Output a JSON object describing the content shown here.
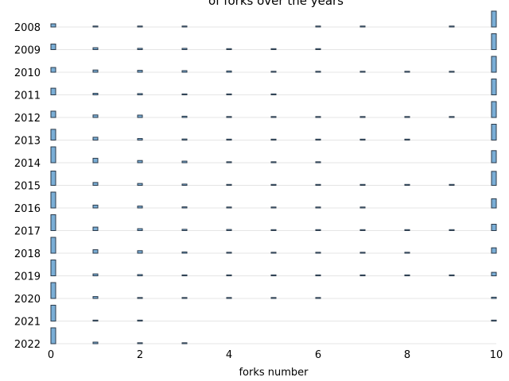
{
  "chart_data": {
    "type": "bar",
    "title": "of forks over the years",
    "xlabel": "forks number",
    "ylabel": "",
    "xlim": [
      0,
      10
    ],
    "x_ticks": [
      "0",
      "2",
      "4",
      "6",
      "8",
      "10"
    ],
    "x": [
      0,
      1,
      2,
      3,
      4,
      5,
      6,
      7,
      8,
      9,
      10
    ],
    "series_fill": "#7aaed6",
    "series_stroke": "#2b3a4a",
    "grid": "horizontal",
    "years": [
      {
        "name": "2008",
        "values": [
          0.2,
          0.02,
          0.05,
          0.02,
          0,
          0,
          0.02,
          0.03,
          0,
          0.03,
          1.0
        ]
      },
      {
        "name": "2009",
        "values": [
          0.35,
          0.12,
          0.08,
          0.08,
          0.02,
          0.02,
          0.02,
          0,
          0,
          0,
          1.0
        ]
      },
      {
        "name": "2010",
        "values": [
          0.3,
          0.14,
          0.12,
          0.1,
          0.08,
          0.03,
          0.02,
          0.02,
          0.02,
          0.03,
          1.0
        ]
      },
      {
        "name": "2011",
        "values": [
          0.42,
          0.1,
          0.08,
          0.06,
          0.03,
          0.02,
          0,
          0,
          0,
          0,
          1.0
        ]
      },
      {
        "name": "2012",
        "values": [
          0.4,
          0.16,
          0.15,
          0.08,
          0.06,
          0.06,
          0.05,
          0.02,
          0.02,
          0.02,
          1.0
        ]
      },
      {
        "name": "2013",
        "values": [
          0.68,
          0.18,
          0.1,
          0.07,
          0.04,
          0.02,
          0.02,
          0.02,
          0.02,
          0,
          1.0
        ]
      },
      {
        "name": "2014",
        "values": [
          1.0,
          0.28,
          0.14,
          0.1,
          0.03,
          0.03,
          0.02,
          0,
          0,
          0,
          0.76
        ]
      },
      {
        "name": "2015",
        "values": [
          0.9,
          0.18,
          0.12,
          0.08,
          0.06,
          0.06,
          0.02,
          0.02,
          0.02,
          0.02,
          0.88
        ]
      },
      {
        "name": "2016",
        "values": [
          1.0,
          0.18,
          0.12,
          0.07,
          0.03,
          0.02,
          0.02,
          0.02,
          0,
          0,
          0.58
        ]
      },
      {
        "name": "2017",
        "values": [
          1.0,
          0.22,
          0.12,
          0.08,
          0.07,
          0.03,
          0.02,
          0.02,
          0.02,
          0.02,
          0.4
        ]
      },
      {
        "name": "2018",
        "values": [
          1.0,
          0.22,
          0.16,
          0.08,
          0.03,
          0.02,
          0.02,
          0.02,
          0.02,
          0,
          0.34
        ]
      },
      {
        "name": "2019",
        "values": [
          1.0,
          0.12,
          0.08,
          0.06,
          0.06,
          0.02,
          0.02,
          0.02,
          0.02,
          0.02,
          0.22
        ]
      },
      {
        "name": "2020",
        "values": [
          1.0,
          0.12,
          0.06,
          0.03,
          0.02,
          0.02,
          0.02,
          0,
          0,
          0,
          0.08
        ]
      },
      {
        "name": "2021",
        "values": [
          1.0,
          0.06,
          0.03,
          0,
          0,
          0,
          0,
          0,
          0,
          0,
          0.05
        ]
      },
      {
        "name": "2022",
        "values": [
          1.0,
          0.1,
          0.02,
          0.03,
          0,
          0,
          0,
          0,
          0,
          0,
          0
        ]
      }
    ]
  }
}
